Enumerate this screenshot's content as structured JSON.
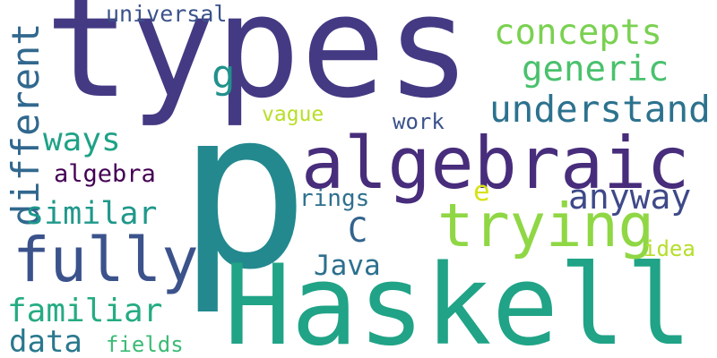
{
  "words": [
    {
      "id": "types",
      "text": "types",
      "color": "#443a83",
      "orientation": "horizontal"
    },
    {
      "id": "p",
      "text": "p",
      "color": "#23898e",
      "orientation": "horizontal"
    },
    {
      "id": "haskell",
      "text": "Haskell",
      "color": "#20a386",
      "orientation": "horizontal"
    },
    {
      "id": "algebraic",
      "text": "algebraic",
      "color": "#472d7b",
      "orientation": "horizontal"
    },
    {
      "id": "trying",
      "text": "trying",
      "color": "#8fd744",
      "orientation": "horizontal"
    },
    {
      "id": "fully",
      "text": "fully",
      "color": "#3b528b",
      "orientation": "horizontal"
    },
    {
      "id": "different",
      "text": "different",
      "color": "#31688e",
      "orientation": "vertical"
    },
    {
      "id": "understand",
      "text": "understand",
      "color": "#2c728e",
      "orientation": "horizontal"
    },
    {
      "id": "concepts",
      "text": "concepts",
      "color": "#7ad151",
      "orientation": "horizontal"
    },
    {
      "id": "generic",
      "text": "generic",
      "color": "#4ac16d",
      "orientation": "horizontal"
    },
    {
      "id": "anyway",
      "text": "anyway",
      "color": "#3e4989",
      "orientation": "horizontal"
    },
    {
      "id": "similar",
      "text": "similar",
      "color": "#1f988b",
      "orientation": "horizontal"
    },
    {
      "id": "familiar",
      "text": "familiar",
      "color": "#25ab82",
      "orientation": "horizontal"
    },
    {
      "id": "ways",
      "text": "ways",
      "color": "#1fa287",
      "orientation": "horizontal"
    },
    {
      "id": "data",
      "text": "data",
      "color": "#2a788e",
      "orientation": "horizontal"
    },
    {
      "id": "java",
      "text": "Java",
      "color": "#2d708e",
      "orientation": "horizontal"
    },
    {
      "id": "universal",
      "text": "universal",
      "color": "#3b528b",
      "orientation": "horizontal"
    },
    {
      "id": "algebra",
      "text": "algebra",
      "color": "#440154",
      "orientation": "horizontal"
    },
    {
      "id": "rings",
      "text": "rings",
      "color": "#2e6f8e",
      "orientation": "horizontal"
    },
    {
      "id": "work",
      "text": "work",
      "color": "#3b528b",
      "orientation": "horizontal"
    },
    {
      "id": "vague",
      "text": "vague",
      "color": "#b8de29",
      "orientation": "horizontal"
    },
    {
      "id": "fields",
      "text": "fields",
      "color": "#3bbb75",
      "orientation": "horizontal"
    },
    {
      "id": "idea",
      "text": "idea",
      "color": "#b5de2b",
      "orientation": "horizontal"
    },
    {
      "id": "g",
      "text": "g",
      "color": "#21918c",
      "orientation": "horizontal"
    },
    {
      "id": "c",
      "text": "C",
      "color": "#33638d",
      "orientation": "horizontal"
    },
    {
      "id": "e",
      "text": "e",
      "color": "#d8e219",
      "orientation": "horizontal"
    }
  ]
}
